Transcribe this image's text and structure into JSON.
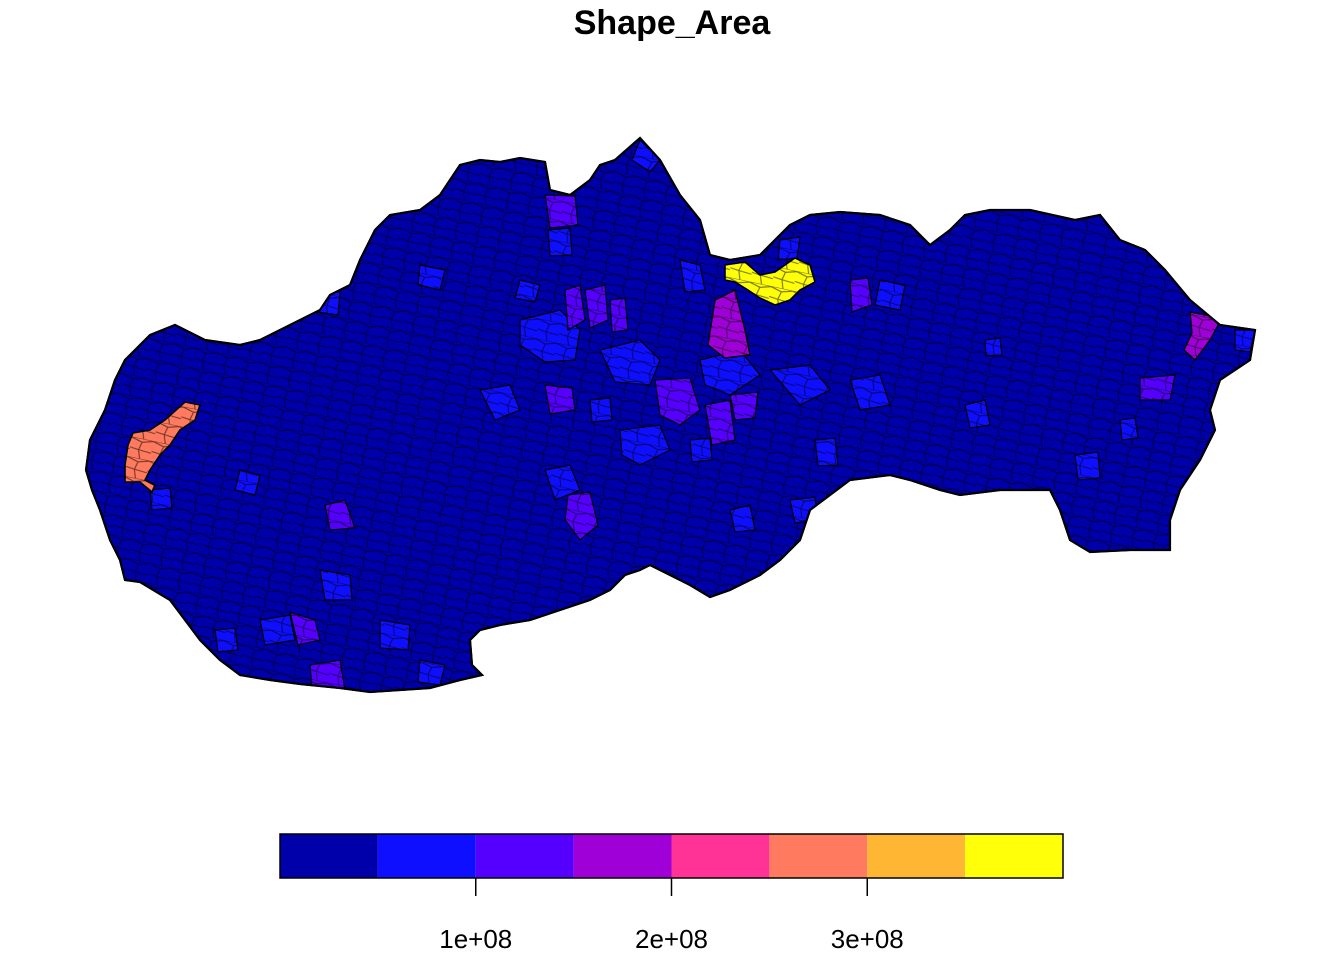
{
  "title": "Shape_Area",
  "region": "Slovakia",
  "colors": {
    "border": "#000000",
    "scale": [
      "#0000AA",
      "#0F0FFF",
      "#5500FF",
      "#A000D8",
      "#FF3296",
      "#FF7A5E",
      "#FFB632",
      "#FFFF0A"
    ]
  },
  "legend": {
    "breaks": [
      0,
      50000000,
      100000000,
      150000000,
      200000000,
      250000000,
      300000000,
      350000000,
      400000000
    ],
    "ticks": [
      {
        "value": 100000000,
        "label": "1e+08"
      },
      {
        "value": 200000000,
        "label": "2e+08"
      },
      {
        "value": 300000000,
        "label": "3e+08"
      }
    ]
  },
  "highlighted_regions": [
    {
      "id": "west-large",
      "class": 5
    },
    {
      "id": "north-large",
      "class": 7
    },
    {
      "id": "north-purple",
      "class": 3
    },
    {
      "id": "east-purple",
      "class": 3
    }
  ]
}
